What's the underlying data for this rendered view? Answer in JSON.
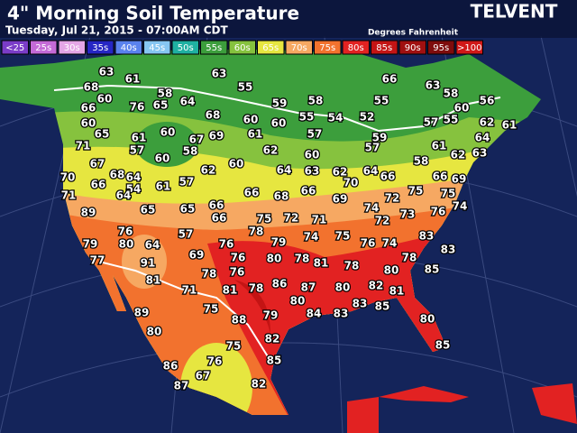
{
  "header": {
    "title": "4\" Morning Soil Temperature",
    "subtitle": "Tuesday, Jul 21, 2015 - 07:00AM CDT",
    "brand": "TELVENT",
    "units": "Degrees Fahrenheit"
  },
  "legend": [
    {
      "label": "<25",
      "color": "#7a3cc8"
    },
    {
      "label": "25s",
      "color": "#c46ad6"
    },
    {
      "label": "30s",
      "color": "#e4a6e6"
    },
    {
      "label": "35s",
      "color": "#2626c4"
    },
    {
      "label": "40s",
      "color": "#5a82ee"
    },
    {
      "label": "45s",
      "color": "#86c6f2"
    },
    {
      "label": "50s",
      "color": "#1fb0a2"
    },
    {
      "label": "55s",
      "color": "#3c9e3c"
    },
    {
      "label": "60s",
      "color": "#86c23e"
    },
    {
      "label": "65s",
      "color": "#e6e640"
    },
    {
      "label": "70s",
      "color": "#f6a862"
    },
    {
      "label": "75s",
      "color": "#f2722e"
    },
    {
      "label": "80s",
      "color": "#e22222"
    },
    {
      "label": "85s",
      "color": "#c41414"
    },
    {
      "label": "90s",
      "color": "#a01010"
    },
    {
      "label": "95s",
      "color": "#7e0c0c"
    },
    {
      "label": ">100",
      "color": "#d01818"
    }
  ],
  "stations": [
    63,
    61,
    68,
    63,
    55,
    66,
    63,
    58,
    56,
    60,
    58,
    64,
    76,
    65,
    59,
    58,
    55,
    60,
    66,
    68,
    60,
    60,
    55,
    54,
    52,
    57,
    55,
    62,
    61,
    60,
    65,
    61,
    60,
    67,
    69,
    61,
    57,
    59,
    64,
    71,
    57,
    58,
    62,
    60,
    57,
    61,
    62,
    63,
    60,
    60,
    58,
    67,
    68,
    64,
    62,
    64,
    63,
    62,
    64,
    66,
    70,
    66,
    54,
    61,
    57,
    66,
    68,
    66,
    70,
    66,
    69,
    71,
    64,
    69,
    72,
    75,
    75,
    74,
    89,
    65,
    65,
    66,
    66,
    75,
    72,
    71,
    72,
    73,
    76,
    74,
    76,
    78,
    57,
    79,
    74,
    75,
    76,
    74,
    83,
    79,
    80,
    64,
    76,
    83,
    77,
    91,
    69,
    76,
    80,
    78,
    81,
    78,
    78,
    80,
    85,
    81,
    78,
    76,
    81,
    78,
    86,
    87,
    80,
    82,
    81,
    71,
    75,
    80,
    84,
    83,
    83,
    85,
    89,
    88,
    79,
    80,
    80,
    82,
    75,
    85,
    86,
    76,
    85,
    87,
    67,
    82
  ]
}
